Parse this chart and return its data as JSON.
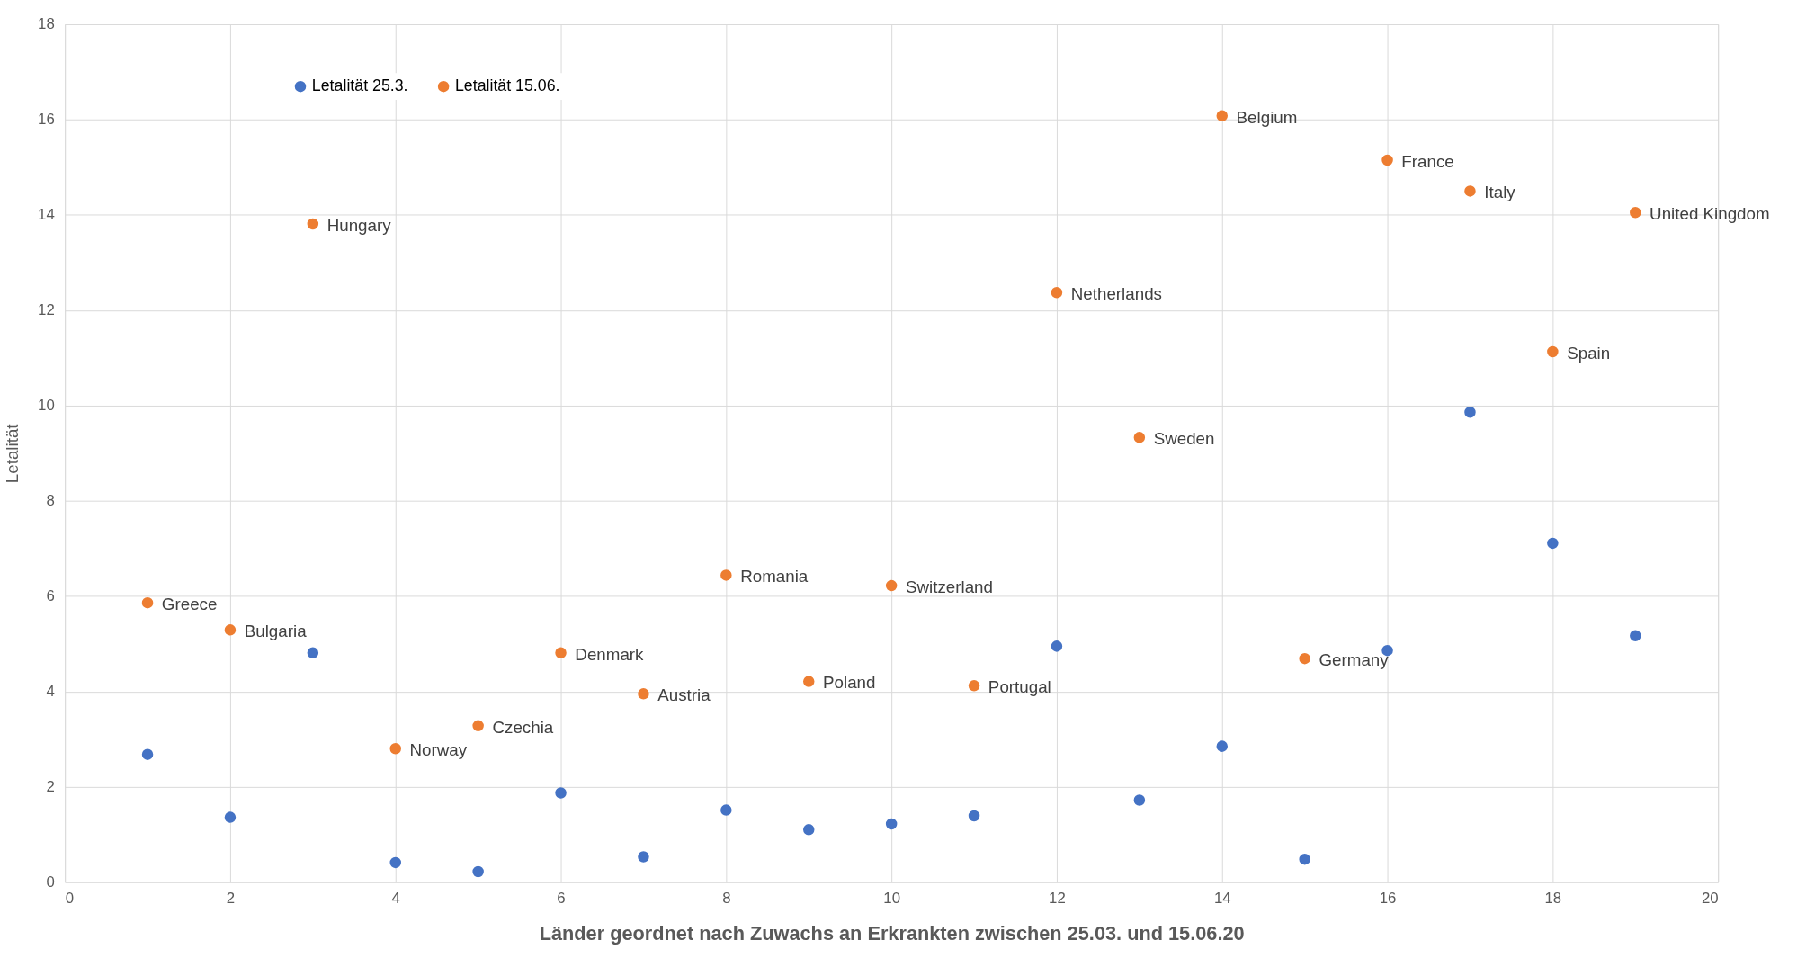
{
  "chart_data": {
    "type": "scatter",
    "xlabel": "Länder geordnet nach Zuwachs an Erkrankten zwischen 25.03. und 15.06.20",
    "ylabel": "Letalität",
    "xlim": [
      0,
      20
    ],
    "xticks": [
      0,
      2,
      4,
      6,
      8,
      10,
      12,
      14,
      16,
      18,
      20
    ],
    "ylim": [
      0,
      18
    ],
    "yticks": [
      0,
      2,
      4,
      6,
      8,
      10,
      12,
      14,
      16,
      18
    ],
    "grid": true,
    "legend": "top left",
    "marker": "circle",
    "x": [
      1,
      2,
      3,
      4,
      5,
      6,
      7,
      8,
      9,
      10,
      11,
      12,
      13,
      14,
      15,
      16,
      17,
      18,
      19
    ],
    "series": [
      {
        "name": "Letalität 25.3.",
        "color": "#4472c4",
        "values": [
          2.68,
          1.36,
          4.81,
          0.41,
          0.22,
          1.87,
          0.53,
          1.51,
          1.1,
          1.22,
          1.39,
          4.95,
          1.72,
          2.85,
          0.48,
          4.86,
          9.86,
          7.11,
          5.17
        ]
      },
      {
        "name": "Letalität 15.06.",
        "color": "#ed7d31",
        "values": [
          5.86,
          5.29,
          13.81,
          2.8,
          3.28,
          4.81,
          3.95,
          6.44,
          4.21,
          6.22,
          4.12,
          12.37,
          9.33,
          16.08,
          4.69,
          15.15,
          14.5,
          11.13,
          14.05
        ]
      }
    ],
    "annotations": [
      {
        "text": "Greece",
        "x": 1,
        "y": 5.86
      },
      {
        "text": "Bulgaria",
        "x": 2,
        "y": 5.29
      },
      {
        "text": "Hungary",
        "x": 3,
        "y": 13.81
      },
      {
        "text": "Norway",
        "x": 4,
        "y": 2.8
      },
      {
        "text": "Czechia",
        "x": 5,
        "y": 3.28
      },
      {
        "text": "Denmark",
        "x": 6,
        "y": 4.81
      },
      {
        "text": "Austria",
        "x": 7,
        "y": 3.95
      },
      {
        "text": "Romania",
        "x": 8,
        "y": 6.44
      },
      {
        "text": "Poland",
        "x": 9,
        "y": 4.21
      },
      {
        "text": "Switzerland",
        "x": 10,
        "y": 6.22
      },
      {
        "text": "Portugal",
        "x": 11,
        "y": 4.12
      },
      {
        "text": "Netherlands",
        "x": 12,
        "y": 12.37
      },
      {
        "text": "Sweden",
        "x": 13,
        "y": 9.33
      },
      {
        "text": "Belgium",
        "x": 14,
        "y": 16.08
      },
      {
        "text": "Germany",
        "x": 15,
        "y": 4.69
      },
      {
        "text": "France",
        "x": 16,
        "y": 15.15
      },
      {
        "text": "Italy",
        "x": 17,
        "y": 14.5
      },
      {
        "text": "Spain",
        "x": 18,
        "y": 11.13
      },
      {
        "text": "United Kingdom",
        "x": 19,
        "y": 14.05
      }
    ]
  }
}
